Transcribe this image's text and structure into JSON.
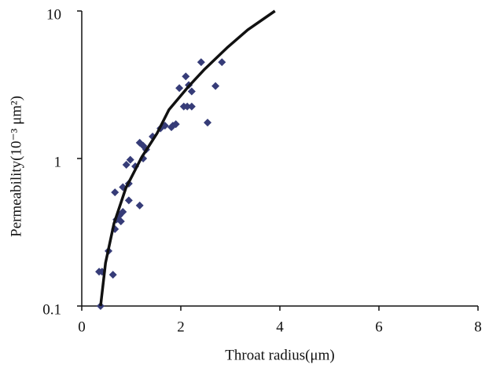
{
  "chart_data": {
    "type": "scatter",
    "xlabel": "Throat radius(μm)",
    "ylabel": "Permeability(10⁻³ μm²)",
    "xlim": [
      0,
      8
    ],
    "xticks": [
      0,
      2,
      4,
      6,
      8
    ],
    "ylim": [
      0.1,
      10
    ],
    "yticks": [
      0.1,
      1,
      10
    ],
    "log_y": true,
    "grid": false,
    "series": [
      {
        "type": "scatter",
        "marker": "diamond",
        "color": "#363c78",
        "x": [
          0.35,
          0.41,
          0.38,
          0.54,
          0.63,
          0.67,
          0.7,
          0.67,
          0.79,
          0.83,
          0.76,
          0.83,
          0.9,
          0.95,
          0.95,
          0.98,
          1.08,
          1.17,
          1.17,
          1.24,
          1.24,
          1.3,
          1.43,
          1.59,
          1.68,
          1.81,
          1.9,
          1.84,
          1.97,
          2.1,
          2.06,
          2.13,
          2.16,
          2.22,
          2.22,
          2.41,
          2.54,
          2.7,
          2.83
        ],
        "values": [
          0.171,
          0.171,
          0.1,
          0.236,
          0.163,
          0.332,
          0.385,
          0.59,
          0.375,
          0.435,
          0.41,
          0.64,
          0.906,
          0.676,
          0.52,
          0.98,
          0.885,
          0.48,
          1.28,
          1.22,
          1.0,
          1.15,
          1.41,
          1.6,
          1.67,
          1.63,
          1.71,
          1.67,
          3.0,
          3.6,
          2.25,
          2.25,
          3.15,
          2.85,
          2.25,
          4.5,
          1.75,
          3.1,
          4.5
        ]
      },
      {
        "type": "line",
        "color": "#111111",
        "x": [
          0.38,
          0.48,
          0.65,
          0.89,
          1.21,
          1.52,
          1.76,
          2.16,
          2.48,
          2.95,
          3.35,
          3.9
        ],
        "values": [
          0.1,
          0.196,
          0.362,
          0.63,
          1.02,
          1.48,
          2.14,
          3.09,
          4.03,
          5.7,
          7.45,
          10
        ]
      }
    ]
  }
}
